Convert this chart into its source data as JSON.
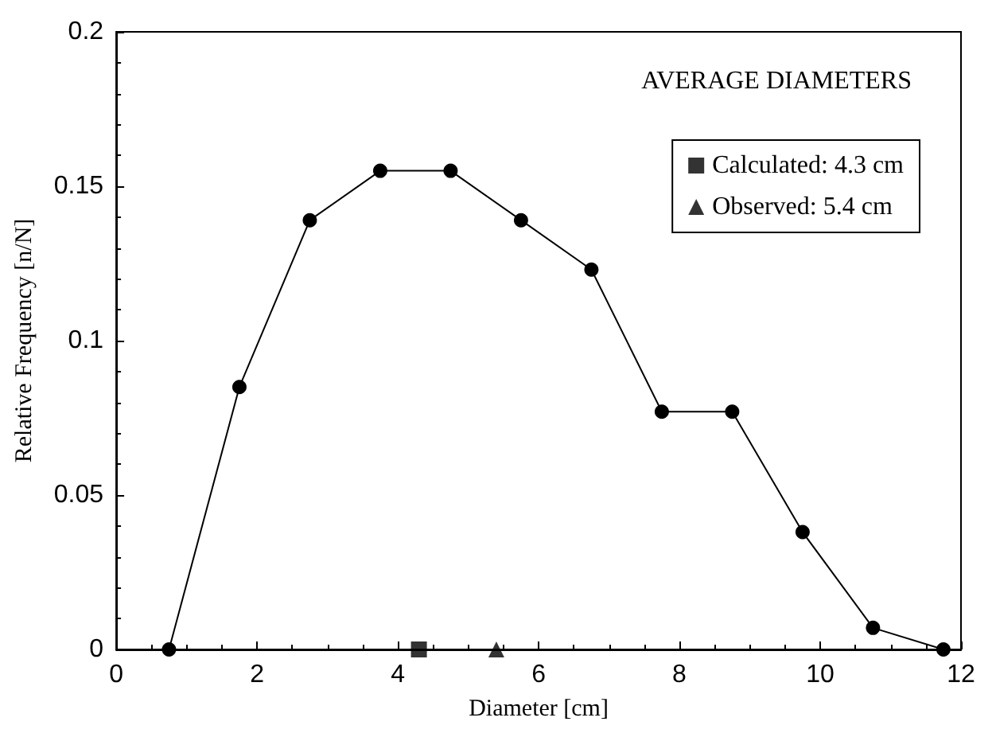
{
  "chart_data": {
    "type": "line",
    "xlabel": "Diameter [cm]",
    "ylabel": "Relative Frequency [n/N]",
    "legend_title": "AVERAGE DIAMETERS",
    "legend": "top right",
    "grid": false,
    "marker": "circle",
    "line_style": "solid",
    "xlim": [
      0,
      12
    ],
    "xticks": [
      0,
      2,
      4,
      6,
      8,
      10,
      12
    ],
    "ylim": [
      0,
      0.2
    ],
    "yticks": [
      0,
      0.05,
      0.1,
      0.15,
      0.2
    ],
    "series": [
      {
        "color": "#000000",
        "x": [
          0.75,
          1.75,
          2.75,
          3.75,
          4.75,
          5.75,
          6.75,
          7.75,
          8.75,
          9.75,
          10.75,
          11.75
        ],
        "values": [
          0,
          0.085,
          0.139,
          0.155,
          0.155,
          0.139,
          0.123,
          0.077,
          0.077,
          0.038,
          0.007,
          0
        ]
      },
      {
        "name": "Calculated: 4.3 cm",
        "type": "scatter",
        "marker": "square",
        "color": "#000000",
        "x": [
          4.3
        ],
        "values": [
          0
        ]
      },
      {
        "name": "Observed: 5.4 cm",
        "type": "scatter",
        "marker": "triangle",
        "color": "#000000",
        "x": [
          5.4
        ],
        "values": [
          0
        ]
      }
    ]
  }
}
